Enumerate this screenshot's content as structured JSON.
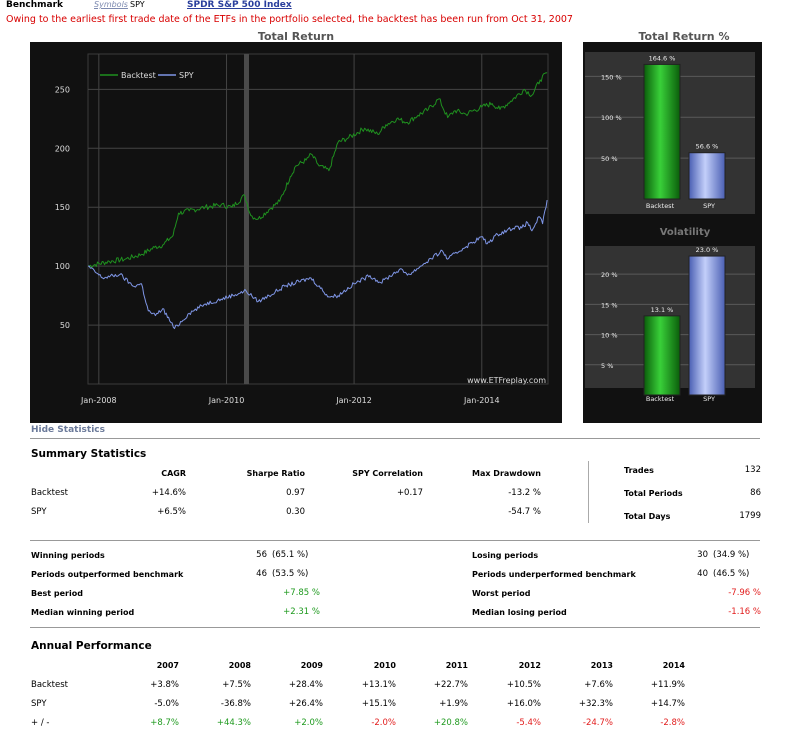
{
  "header": {
    "benchmark_label": "Benchmark",
    "symbols_label": "Symbols",
    "symbol_value": "SPY",
    "index_link": "SPDR S&P 500 Index",
    "notice": "Owing to the earliest first trade date of the ETFs in the portfolio selected, the backtest has been run from Oct 31, 2007"
  },
  "colors": {
    "backtest": "#1f8f1f",
    "spy": "#7f96e6",
    "positive": "#1f9a1f",
    "negative": "#e21d1d",
    "chart_bg": "#111111"
  },
  "chart_data": [
    {
      "type": "line",
      "title": "Total Return",
      "watermark": "www.ETFreplay.com",
      "legend_position": "top-left",
      "x_ticks": [
        "Jan-2008",
        "Jan-2010",
        "Jan-2012",
        "Jan-2014"
      ],
      "y_ticks": [
        50,
        100,
        150,
        200,
        250
      ],
      "xlim": [
        "2007-10-31",
        "2015-01-15"
      ],
      "ylim": [
        0,
        280
      ],
      "series": [
        {
          "name": "Backtest",
          "points": [
            [
              "2007-10-31",
              100
            ],
            [
              "2008-03-01",
              104
            ],
            [
              "2008-06-01",
              106
            ],
            [
              "2008-09-01",
              110
            ],
            [
              "2008-11-15",
              116
            ],
            [
              "2009-01-01",
              118
            ],
            [
              "2009-03-01",
              126
            ],
            [
              "2009-04-01",
              145
            ],
            [
              "2009-06-01",
              147
            ],
            [
              "2009-09-01",
              150
            ],
            [
              "2009-12-01",
              152
            ],
            [
              "2010-02-01",
              150
            ],
            [
              "2010-04-15",
              160
            ],
            [
              "2010-05-20",
              143
            ],
            [
              "2010-07-01",
              140
            ],
            [
              "2010-09-01",
              148
            ],
            [
              "2010-11-01",
              155
            ],
            [
              "2011-01-01",
              176
            ],
            [
              "2011-02-01",
              185
            ],
            [
              "2011-04-01",
              190
            ],
            [
              "2011-05-01",
              195
            ],
            [
              "2011-06-15",
              185
            ],
            [
              "2011-08-10",
              181
            ],
            [
              "2011-10-01",
              205
            ],
            [
              "2011-12-01",
              209
            ],
            [
              "2012-03-01",
              217
            ],
            [
              "2012-05-15",
              212
            ],
            [
              "2012-07-01",
              220
            ],
            [
              "2012-09-01",
              225
            ],
            [
              "2012-11-01",
              222
            ],
            [
              "2013-01-01",
              228
            ],
            [
              "2013-03-01",
              233
            ],
            [
              "2013-05-01",
              242
            ],
            [
              "2013-06-20",
              226
            ],
            [
              "2013-08-01",
              232
            ],
            [
              "2013-10-01",
              229
            ],
            [
              "2014-01-01",
              235
            ],
            [
              "2014-03-01",
              238
            ],
            [
              "2014-04-15",
              233
            ],
            [
              "2014-06-15",
              240
            ],
            [
              "2014-09-01",
              250
            ],
            [
              "2014-10-15",
              245
            ],
            [
              "2014-12-01",
              258
            ],
            [
              "2015-01-10",
              264
            ]
          ]
        },
        {
          "name": "SPY",
          "points": [
            [
              "2007-10-31",
              100
            ],
            [
              "2008-01-22",
              90
            ],
            [
              "2008-05-01",
              93
            ],
            [
              "2008-07-15",
              83
            ],
            [
              "2008-09-01",
              85
            ],
            [
              "2008-10-10",
              62
            ],
            [
              "2008-11-20",
              58
            ],
            [
              "2009-01-01",
              64
            ],
            [
              "2009-03-09",
              47
            ],
            [
              "2009-06-01",
              60
            ],
            [
              "2009-09-01",
              68
            ],
            [
              "2009-12-01",
              72
            ],
            [
              "2010-04-23",
              79
            ],
            [
              "2010-07-01",
              70
            ],
            [
              "2010-09-01",
              75
            ],
            [
              "2010-12-01",
              83
            ],
            [
              "2011-04-29",
              90
            ],
            [
              "2011-08-10",
              74
            ],
            [
              "2011-10-01",
              75
            ],
            [
              "2012-01-01",
              85
            ],
            [
              "2012-04-01",
              92
            ],
            [
              "2012-06-01",
              86
            ],
            [
              "2012-09-15",
              97
            ],
            [
              "2012-11-15",
              93
            ],
            [
              "2013-01-15",
              100
            ],
            [
              "2013-05-20",
              113
            ],
            [
              "2013-06-20",
              106
            ],
            [
              "2013-09-15",
              115
            ],
            [
              "2013-12-31",
              125
            ],
            [
              "2014-02-01",
              119
            ],
            [
              "2014-04-01",
              127
            ],
            [
              "2014-07-20",
              134
            ],
            [
              "2014-08-05",
              131
            ],
            [
              "2014-09-20",
              137
            ],
            [
              "2014-10-15",
              130
            ],
            [
              "2014-11-25",
              142
            ],
            [
              "2014-12-15",
              136
            ],
            [
              "2015-01-10",
              156
            ]
          ]
        }
      ]
    },
    {
      "type": "bar",
      "title": "Total Return %",
      "categories": [
        "Backtest",
        "SPY"
      ],
      "values": [
        164.6,
        56.6
      ],
      "value_labels": [
        "164.6 %",
        "56.6 %"
      ],
      "y_ticks": [
        "50 %",
        "100 %",
        "150 %"
      ],
      "ylim": [
        0,
        170
      ]
    },
    {
      "type": "bar",
      "title": "Volatility",
      "categories": [
        "Backtest",
        "SPY"
      ],
      "values": [
        13.1,
        23.0
      ],
      "value_labels": [
        "13.1 %",
        "23.0 %"
      ],
      "y_ticks": [
        "5 %",
        "10 %",
        "15 %",
        "20 %"
      ],
      "ylim": [
        0,
        24
      ]
    }
  ],
  "stats": {
    "hide_label": "Hide Statistics",
    "summary_title": "Summary Statistics",
    "summary_headers": [
      "CAGR",
      "Sharpe Ratio",
      "SPY Correlation",
      "Max Drawdown"
    ],
    "summary_rows": [
      {
        "label": "Backtest",
        "cagr": "+14.6%",
        "sharpe": "0.97",
        "corr": "+0.17",
        "mdd": "-13.2 %"
      },
      {
        "label": "SPY",
        "cagr": "+6.5%",
        "sharpe": "0.30",
        "corr": "",
        "mdd": "-54.7 %"
      }
    ],
    "trades_label": "Trades",
    "trades_value": "132",
    "periods_label": "Total Periods",
    "periods_value": "86",
    "days_label": "Total Days",
    "days_value": "1799",
    "winning_label": "Winning periods",
    "winning_count": "56",
    "winning_pct": "(65.1 %)",
    "losing_label": "Losing periods",
    "losing_count": "30",
    "losing_pct": "(34.9 %)",
    "outperf_label": "Periods outperformed benchmark",
    "outperf_count": "46",
    "outperf_pct": "(53.5 %)",
    "underperf_label": "Periods underperformed benchmark",
    "underperf_count": "40",
    "underperf_pct": "(46.5 %)",
    "best_label": "Best period",
    "best_value": "+7.85 %",
    "worst_label": "Worst period",
    "worst_value": "-7.96 %",
    "med_win_label": "Median winning period",
    "med_win_value": "+2.31 %",
    "med_lose_label": "Median losing period",
    "med_lose_value": "-1.16 %"
  },
  "annual": {
    "title": "Annual Performance",
    "years": [
      "2007",
      "2008",
      "2009",
      "2010",
      "2011",
      "2012",
      "2013",
      "2014"
    ],
    "rows": [
      {
        "label": "Backtest",
        "values": [
          "+3.8%",
          "+7.5%",
          "+28.4%",
          "+13.1%",
          "+22.7%",
          "+10.5%",
          "+7.6%",
          "+11.9%"
        ]
      },
      {
        "label": "SPY",
        "values": [
          "-5.0%",
          "-36.8%",
          "+26.4%",
          "+15.1%",
          "+1.9%",
          "+16.0%",
          "+32.3%",
          "+14.7%"
        ]
      },
      {
        "label": "+ / -",
        "values": [
          "+8.7%",
          "+44.3%",
          "+2.0%",
          "-2.0%",
          "+20.8%",
          "-5.4%",
          "-24.7%",
          "-2.8%"
        ]
      }
    ]
  }
}
